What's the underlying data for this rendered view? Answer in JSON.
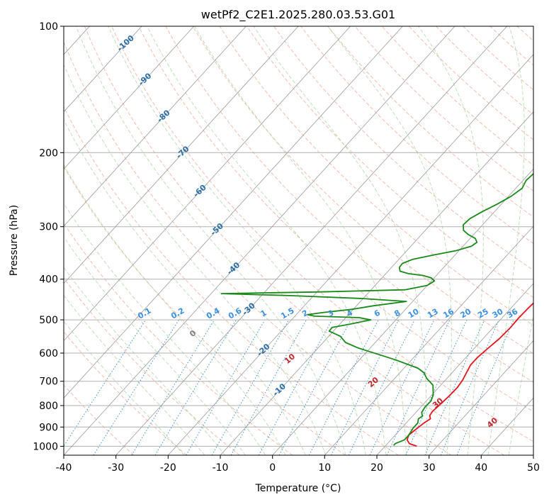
{
  "chart_data": {
    "type": "line",
    "subtype": "skew-t log-p diagram",
    "title": "wetPf2_C2E1.2025.280.03.53.G01",
    "xlabel": "Temperature (°C)",
    "ylabel": "Pressure (hPa)",
    "xlim": [
      -40,
      50
    ],
    "ylim": [
      1050,
      100
    ],
    "x_ticks": [
      -40,
      -30,
      -20,
      -10,
      0,
      10,
      20,
      30,
      40,
      50
    ],
    "y_ticks": [
      1000,
      900,
      800,
      700,
      600,
      500,
      400,
      300,
      200,
      100
    ],
    "grid": true,
    "colors": {
      "temperature": "#e8141b",
      "dewpoint": "#1a8a1a",
      "isotherm": "#9a9a9a",
      "dry_adiabat": "#f2a58f",
      "moist_adiabat": "#a8d5a0",
      "mixing_ratio": "#3c90e0",
      "isotherm_label": "#2a6fa8",
      "moist_label": "#c0282d",
      "freezing_label": "#808080"
    },
    "series": [
      {
        "name": "Temperature",
        "points": [
          [
            26.1,
            1000
          ],
          [
            24.2,
            985
          ],
          [
            23.1,
            965
          ],
          [
            22.6,
            940
          ],
          [
            22.9,
            915
          ],
          [
            23.4,
            880
          ],
          [
            23.9,
            860
          ],
          [
            23.2,
            845
          ],
          [
            23.0,
            825
          ],
          [
            23.3,
            790
          ],
          [
            23.5,
            760
          ],
          [
            23.6,
            725
          ],
          [
            23.3,
            695
          ],
          [
            22.7,
            665
          ],
          [
            22.2,
            640
          ],
          [
            22.2,
            615
          ],
          [
            22.6,
            585
          ],
          [
            23.1,
            555
          ],
          [
            23.3,
            520
          ],
          [
            23.2,
            495
          ],
          [
            23.3,
            470
          ],
          [
            23.5,
            452
          ],
          [
            23.8,
            440
          ],
          [
            23.6,
            432
          ],
          [
            22.7,
            424
          ],
          [
            21.2,
            406
          ],
          [
            19.3,
            387
          ],
          [
            17.3,
            368
          ],
          [
            15.3,
            347
          ],
          [
            14.2,
            325
          ],
          [
            12.5,
            307
          ],
          [
            10.0,
            283
          ],
          [
            7.1,
            260
          ],
          [
            4.4,
            238
          ],
          [
            2.3,
            217
          ],
          [
            0.5,
            200
          ],
          [
            -1.0,
            183
          ],
          [
            -2.4,
            164
          ],
          [
            -3.2,
            148
          ],
          [
            -3.9,
            137
          ],
          [
            -4.6,
            128
          ],
          [
            -5.3,
            120
          ],
          [
            -5.7,
            113
          ],
          [
            -5.2,
            107
          ],
          [
            -3.8,
            102
          ],
          [
            -3.0,
            100
          ]
        ]
      },
      {
        "name": "Dewpoint",
        "points": [
          [
            21.5,
            995
          ],
          [
            21.5,
            985
          ],
          [
            22.6,
            965
          ],
          [
            22.6,
            940
          ],
          [
            22.2,
            905
          ],
          [
            22.2,
            880
          ],
          [
            21.6,
            860
          ],
          [
            21.9,
            848
          ],
          [
            21.1,
            830
          ],
          [
            20.8,
            805
          ],
          [
            20.9,
            780
          ],
          [
            20.3,
            755
          ],
          [
            18.5,
            715
          ],
          [
            16.2,
            690
          ],
          [
            14.6,
            668
          ],
          [
            12.7,
            652
          ],
          [
            10.4,
            640
          ],
          [
            6.8,
            622
          ],
          [
            2.4,
            603
          ],
          [
            -2.4,
            583
          ],
          [
            -5.7,
            566
          ],
          [
            -7.8,
            547
          ],
          [
            -10.8,
            532
          ],
          [
            -10.9,
            521
          ],
          [
            -8.1,
            512
          ],
          [
            -4.8,
            500
          ],
          [
            -7.4,
            494
          ],
          [
            -16.2,
            490
          ],
          [
            -17.9,
            486
          ],
          [
            -15.1,
            480
          ],
          [
            -10.3,
            472
          ],
          [
            -6.8,
            463
          ],
          [
            -1.2,
            452
          ],
          [
            -10.0,
            445
          ],
          [
            -24.1,
            438
          ],
          [
            -38.0,
            433
          ],
          [
            -19.3,
            429
          ],
          [
            -3.5,
            424
          ],
          [
            0.0,
            414
          ],
          [
            0.6,
            404
          ],
          [
            -0.6,
            397
          ],
          [
            -2.6,
            392
          ],
          [
            -5.7,
            388
          ],
          [
            -7.7,
            383
          ],
          [
            -8.5,
            375
          ],
          [
            -8.6,
            367
          ],
          [
            -7.4,
            359
          ],
          [
            -3.9,
            350
          ],
          [
            -0.5,
            342
          ],
          [
            1.6,
            334
          ],
          [
            2.0,
            327
          ],
          [
            1.0,
            320
          ],
          [
            -1.1,
            313
          ],
          [
            -2.7,
            306
          ],
          [
            -3.7,
            297
          ],
          [
            -3.5,
            287
          ],
          [
            -2.3,
            276
          ],
          [
            -0.8,
            265
          ],
          [
            0.5,
            254
          ],
          [
            1.2,
            243
          ],
          [
            0.6,
            233
          ],
          [
            0.9,
            222
          ],
          [
            3.3,
            212
          ],
          [
            4.6,
            202
          ],
          [
            4.4,
            193
          ],
          [
            3.0,
            184
          ],
          [
            0.4,
            175
          ],
          [
            -1.8,
            167
          ],
          [
            -3.1,
            160
          ],
          [
            -3.3,
            152
          ],
          [
            -3.0,
            143
          ],
          [
            -3.1,
            134
          ],
          [
            -2.7,
            125
          ],
          [
            -3.3,
            118
          ],
          [
            -3.4,
            113
          ],
          [
            -2.6,
            107
          ],
          [
            -0.8,
            102
          ],
          [
            0.1,
            100
          ]
        ]
      }
    ],
    "isotherm_labels": [
      "-100",
      "-90",
      "-80",
      "-70",
      "-60",
      "-50",
      "-40",
      "-30",
      "-20",
      "-10"
    ],
    "mixing_ratio_labels": [
      "0.1",
      "0.2",
      "0.4",
      "0.6",
      "1",
      "1.5",
      "2",
      "3",
      "4",
      "6",
      "8",
      "10",
      "13",
      "16",
      "20",
      "25",
      "30",
      "36"
    ],
    "moist_adiabat_labels": [
      "0",
      "10",
      "20",
      "30",
      "40"
    ]
  }
}
